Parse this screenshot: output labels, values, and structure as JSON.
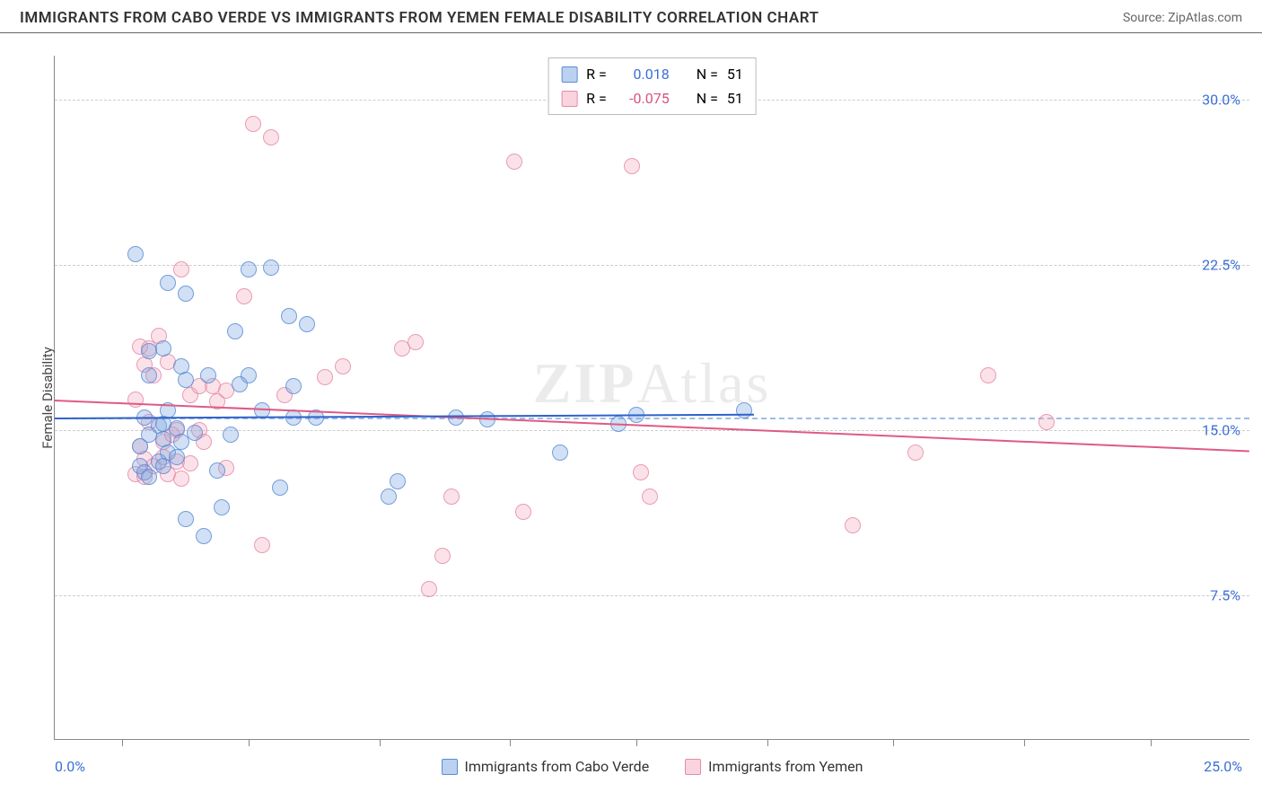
{
  "header": {
    "title": "IMMIGRANTS FROM CABO VERDE VS IMMIGRANTS FROM YEMEN FEMALE DISABILITY CORRELATION CHART",
    "source": "Source: ZipAtlas.com"
  },
  "chart": {
    "type": "scatter",
    "ylabel": "Female Disability",
    "background_color": "#ffffff",
    "grid_color": "#cccccc",
    "axis_color": "#888888",
    "x_domain": [
      -1.5,
      25.0
    ],
    "y_domain": [
      1.0,
      32.0
    ],
    "y_gridlines": [
      7.5,
      15.0,
      22.5,
      30.0
    ],
    "y_tick_labels": [
      "7.5%",
      "15.0%",
      "22.5%",
      "30.0%"
    ],
    "x_ticks": [
      0,
      2.8,
      5.7,
      8.6,
      11.4,
      14.3,
      17.1,
      20.0,
      22.8
    ],
    "x_label_min": "0.0%",
    "x_label_max": "25.0%",
    "dashed_ref_y": 15.6,
    "series_a": {
      "name": "Immigrants from Cabo Verde",
      "fill_color": "rgba(120,164,224,0.4)",
      "stroke_color": "#5a8cd6",
      "marker_radius": 9,
      "r": "0.018",
      "n": "51",
      "trend": {
        "y_at_xmin": 15.6,
        "y_at_xmax": 15.9,
        "only_to_x": 14.0,
        "color": "#2f62c9",
        "width": 2
      },
      "points": [
        [
          0.3,
          23.0
        ],
        [
          0.4,
          13.4
        ],
        [
          0.4,
          14.3
        ],
        [
          0.5,
          13.1
        ],
        [
          0.5,
          15.6
        ],
        [
          0.6,
          12.9
        ],
        [
          0.6,
          14.8
        ],
        [
          0.6,
          17.5
        ],
        [
          0.6,
          18.6
        ],
        [
          0.8,
          13.6
        ],
        [
          0.8,
          15.2
        ],
        [
          0.9,
          13.4
        ],
        [
          0.9,
          14.6
        ],
        [
          0.9,
          15.3
        ],
        [
          0.9,
          18.7
        ],
        [
          1.0,
          14.0
        ],
        [
          1.0,
          15.9
        ],
        [
          1.0,
          21.7
        ],
        [
          1.2,
          13.8
        ],
        [
          1.2,
          15.1
        ],
        [
          1.3,
          14.5
        ],
        [
          1.3,
          17.9
        ],
        [
          1.4,
          11.0
        ],
        [
          1.4,
          17.3
        ],
        [
          1.4,
          21.2
        ],
        [
          1.6,
          14.9
        ],
        [
          1.8,
          10.2
        ],
        [
          1.9,
          17.5
        ],
        [
          2.1,
          13.2
        ],
        [
          2.2,
          11.5
        ],
        [
          2.4,
          14.8
        ],
        [
          2.5,
          19.5
        ],
        [
          2.6,
          17.1
        ],
        [
          2.8,
          17.5
        ],
        [
          2.8,
          22.3
        ],
        [
          3.1,
          15.9
        ],
        [
          3.3,
          22.4
        ],
        [
          3.5,
          12.4
        ],
        [
          3.7,
          20.2
        ],
        [
          3.8,
          15.6
        ],
        [
          3.8,
          17.0
        ],
        [
          4.1,
          19.8
        ],
        [
          4.3,
          15.6
        ],
        [
          5.9,
          12.0
        ],
        [
          6.1,
          12.7
        ],
        [
          7.4,
          15.6
        ],
        [
          8.1,
          15.5
        ],
        [
          9.7,
          14.0
        ],
        [
          11.0,
          15.3
        ],
        [
          11.4,
          15.7
        ],
        [
          13.8,
          15.9
        ]
      ]
    },
    "series_b": {
      "name": "Immigrants from Yemen",
      "fill_color": "rgba(244,170,190,0.4)",
      "stroke_color": "#e68aa6",
      "marker_radius": 9,
      "r": "-0.075",
      "n": "51",
      "trend": {
        "y_at_xmin": 16.4,
        "y_at_xmax": 14.1,
        "color": "#e05a84",
        "width": 2
      },
      "points": [
        [
          0.3,
          13.0
        ],
        [
          0.3,
          16.4
        ],
        [
          0.4,
          14.3
        ],
        [
          0.4,
          18.8
        ],
        [
          0.5,
          12.9
        ],
        [
          0.5,
          13.7
        ],
        [
          0.5,
          18.0
        ],
        [
          0.6,
          15.4
        ],
        [
          0.6,
          18.7
        ],
        [
          0.7,
          13.4
        ],
        [
          0.7,
          17.5
        ],
        [
          0.8,
          19.3
        ],
        [
          0.9,
          13.8
        ],
        [
          0.9,
          14.5
        ],
        [
          1.0,
          13.0
        ],
        [
          1.0,
          18.1
        ],
        [
          1.1,
          14.8
        ],
        [
          1.2,
          13.6
        ],
        [
          1.2,
          15.0
        ],
        [
          1.3,
          12.8
        ],
        [
          1.3,
          22.3
        ],
        [
          1.5,
          13.5
        ],
        [
          1.5,
          16.6
        ],
        [
          1.7,
          15.0
        ],
        [
          1.7,
          17.0
        ],
        [
          1.8,
          14.5
        ],
        [
          2.0,
          17.0
        ],
        [
          2.1,
          16.3
        ],
        [
          2.3,
          13.3
        ],
        [
          2.3,
          16.8
        ],
        [
          2.7,
          21.1
        ],
        [
          2.9,
          28.9
        ],
        [
          3.1,
          9.8
        ],
        [
          3.3,
          28.3
        ],
        [
          3.6,
          16.6
        ],
        [
          4.5,
          17.4
        ],
        [
          4.9,
          17.9
        ],
        [
          6.2,
          18.7
        ],
        [
          6.5,
          19.0
        ],
        [
          6.8,
          7.8
        ],
        [
          7.1,
          9.3
        ],
        [
          7.3,
          12.0
        ],
        [
          8.7,
          27.2
        ],
        [
          8.9,
          11.3
        ],
        [
          11.3,
          27.0
        ],
        [
          11.5,
          13.1
        ],
        [
          11.7,
          12.0
        ],
        [
          16.2,
          10.7
        ],
        [
          17.6,
          14.0
        ],
        [
          19.2,
          17.5
        ],
        [
          20.5,
          15.4
        ]
      ]
    },
    "bottom_legend": [
      {
        "swatch": "a",
        "label": "Immigrants from Cabo Verde"
      },
      {
        "swatch": "b",
        "label": "Immigrants from Yemen"
      }
    ],
    "top_legend": {
      "rows": [
        {
          "swatch": "a",
          "r_prefix": "R =",
          "r_val": "0.018",
          "n_prefix": "N =",
          "n_val": "51",
          "val_class": "r-val-a"
        },
        {
          "swatch": "b",
          "r_prefix": "R =",
          "r_val": "-0.075",
          "n_prefix": "N =",
          "n_val": "51",
          "val_class": "r-val-b"
        }
      ]
    },
    "watermark": {
      "bold": "ZIP",
      "rest": "Atlas"
    }
  }
}
